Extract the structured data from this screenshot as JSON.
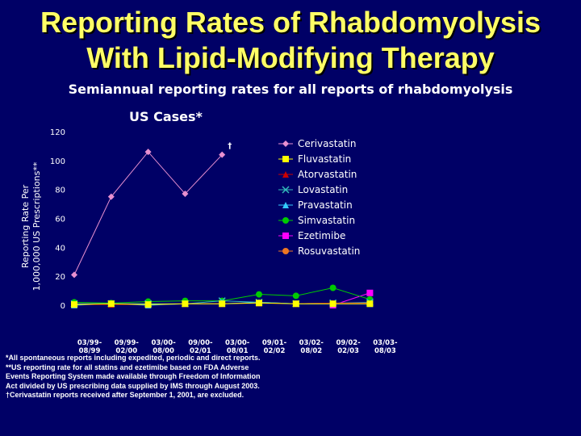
{
  "slide": {
    "title_line1": "Reporting Rates of Rhabdomyolysis",
    "title_line2": "With Lipid-Modifying Therapy",
    "subtitle": "Semiannual reporting rates for all reports of rhabdomyolysis",
    "cases_label": "US Cases*"
  },
  "footnotes": [
    "*All spontaneous reports including expedited, periodic and direct reports.",
    "**US reporting rate for all statins and ezetimibe based on FDA Adverse",
    "Events Reporting System made available through Freedom of Information",
    "Act divided by US prescribing data supplied by IMS through August 2003.",
    "†Cerivastatin reports received after September 1, 2001, are excluded."
  ],
  "chart_data": {
    "type": "line",
    "title": "US Cases*",
    "ylabel_line1": "Reporting Rate Per",
    "ylabel_line2": "1,000,000 US Prescriptions**",
    "xlabel": "",
    "ylim": [
      0,
      120
    ],
    "yticks": [
      0,
      20,
      40,
      60,
      80,
      100,
      120
    ],
    "categories": [
      "03/99-08/99",
      "09/99-02/00",
      "03/00-08/00",
      "09/00-02/01",
      "03/00-08/01",
      "09/01-02/02",
      "03/02-08/02",
      "09/02-02/03",
      "03/03-08/03"
    ],
    "category_lines": [
      [
        "03/99-",
        "08/99"
      ],
      [
        "09/99-",
        "02/00"
      ],
      [
        "03/00-",
        "08/00"
      ],
      [
        "09/00-",
        "02/01"
      ],
      [
        "03/00-",
        "08/01"
      ],
      [
        "09/01-",
        "02/02"
      ],
      [
        "03/02-",
        "08/02"
      ],
      [
        "09/02-",
        "02/03"
      ],
      [
        "03/03-",
        "08/03"
      ]
    ],
    "annotation": {
      "text": "†",
      "category_index": 4
    },
    "legend_position": "right",
    "series": [
      {
        "name": "Cerivastatin",
        "color": "#e890d0",
        "marker": "diamond",
        "values": [
          21,
          75,
          106,
          77,
          104,
          null,
          null,
          null,
          null
        ]
      },
      {
        "name": "Fluvastatin",
        "color": "#ffff00",
        "marker": "square",
        "values": [
          0.5,
          1,
          0.5,
          1,
          1,
          1.5,
          1,
          1,
          1
        ]
      },
      {
        "name": "Atorvastatin",
        "color": "#cc0000",
        "marker": "triangle",
        "values": [
          0.5,
          0.5,
          0.5,
          1,
          1,
          1.5,
          1,
          1.5,
          1.5
        ]
      },
      {
        "name": "Lovastatin",
        "color": "#33bbbb",
        "marker": "x",
        "values": [
          1,
          1,
          1,
          1,
          3,
          2,
          1,
          1.5,
          2
        ]
      },
      {
        "name": "Pravastatin",
        "color": "#33ccff",
        "marker": "triangle",
        "values": [
          0,
          1,
          0,
          1,
          1,
          2,
          1,
          1,
          1
        ]
      },
      {
        "name": "Simvastatin",
        "color": "#00cc00",
        "marker": "circle",
        "values": [
          2,
          1.5,
          2.5,
          3,
          3,
          7.5,
          6.5,
          12,
          4
        ]
      },
      {
        "name": "Ezetimibe",
        "color": "#ff00ff",
        "marker": "square",
        "values": [
          null,
          null,
          null,
          null,
          null,
          null,
          null,
          0,
          8.5
        ]
      },
      {
        "name": "Rosuvastatin",
        "color": "#ee7722",
        "marker": "circle",
        "values": [
          null,
          null,
          null,
          null,
          null,
          null,
          null,
          null,
          4
        ]
      }
    ]
  }
}
